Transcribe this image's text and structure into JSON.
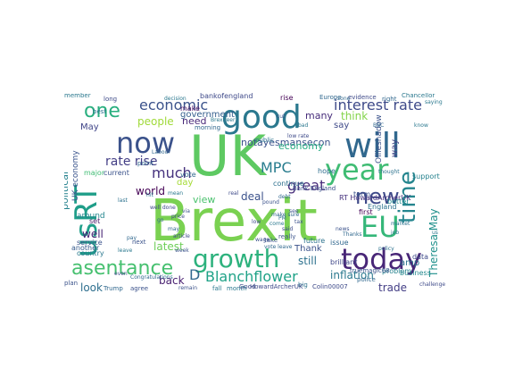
{
  "cloud": {
    "words": [
      {
        "text": "Brexit",
        "color": "#7ad151"
      },
      {
        "text": "UK",
        "color": "#5ec962"
      },
      {
        "text": "good",
        "color": "#2a788e"
      },
      {
        "text": "will",
        "color": "#31688e"
      },
      {
        "text": "now",
        "color": "#3b528b"
      },
      {
        "text": "year",
        "color": "#3fbc73"
      },
      {
        "text": "EU",
        "color": "#35b779"
      },
      {
        "text": "today",
        "color": "#482677"
      },
      {
        "text": "growth",
        "color": "#2db27d"
      },
      {
        "text": "asentance",
        "color": "#46c06f"
      },
      {
        "text": "usRT",
        "color": "#1f9e89"
      },
      {
        "text": "time",
        "color": "#25858e"
      },
      {
        "text": "new",
        "color": "#3e4a89"
      },
      {
        "text": "one",
        "color": "#29af7f"
      },
      {
        "text": "economic",
        "color": "#3b528b"
      },
      {
        "text": "interest rate",
        "color": "#3e4a89"
      },
      {
        "text": "MPC",
        "color": "#287c8e"
      },
      {
        "text": "Blanchflower",
        "color": "#1fa287"
      },
      {
        "text": "D",
        "color": "#31688e"
      },
      {
        "text": "inflation",
        "color": "#2a788e"
      },
      {
        "text": "notayesmansecon",
        "color": "#3b528b"
      },
      {
        "text": "Theresa May",
        "color": "#21918c"
      },
      {
        "text": "rate rise",
        "color": "#433e85"
      },
      {
        "text": "much",
        "color": "#46337e"
      },
      {
        "text": "economy",
        "color": "#25ab82"
      },
      {
        "text": "people",
        "color": "#a0da39"
      },
      {
        "text": "great",
        "color": "#472c7a"
      },
      {
        "text": "world",
        "color": "#440154"
      },
      {
        "text": "deal",
        "color": "#3b528b"
      },
      {
        "text": "still",
        "color": "#2c718e"
      },
      {
        "text": "latest",
        "color": "#6ece58"
      },
      {
        "text": "back",
        "color": "#481f70"
      },
      {
        "text": "view",
        "color": "#4ac16d"
      },
      {
        "text": "government",
        "color": "#355f8d"
      },
      {
        "text": "need",
        "color": "#482878"
      },
      {
        "text": "many",
        "color": "#472d7b"
      },
      {
        "text": "think",
        "color": "#84d44b"
      },
      {
        "text": "say",
        "color": "#3e4989"
      },
      {
        "text": "look",
        "color": "#2e6f8e"
      },
      {
        "text": "day",
        "color": "#a5db36"
      },
      {
        "text": "Thank",
        "color": "#3b528b"
      },
      {
        "text": "well",
        "color": "#482475"
      },
      {
        "text": "trade",
        "color": "#433e85"
      },
      {
        "text": "political",
        "color": "#26828e"
      },
      {
        "text": "amp",
        "color": "#2c728e"
      },
      {
        "text": "way",
        "color": "#414487"
      },
      {
        "text": "bankofengland",
        "color": "#3e4989"
      },
      {
        "text": "May",
        "color": "#404588"
      },
      {
        "text": "continue",
        "color": "#2d708e"
      },
      {
        "text": "business",
        "color": "#23898e"
      },
      {
        "text": "support",
        "color": "#26828e"
      },
      {
        "text": "UK economy",
        "color": "#3a548c"
      },
      {
        "text": "RT HowardArcherUK",
        "color": "#46327e"
      },
      {
        "text": "England",
        "color": "#2c728e"
      },
      {
        "text": "around",
        "color": "#24868e"
      },
      {
        "text": "service",
        "color": "#3b528b"
      },
      {
        "text": "country",
        "color": "#2a788e"
      },
      {
        "text": "another",
        "color": "#375b8d"
      },
      {
        "text": "issue",
        "color": "#31688e"
      },
      {
        "text": "brilliant",
        "color": "#3f4788"
      },
      {
        "text": "problem",
        "color": "#26828e"
      },
      {
        "text": "data",
        "color": "#3e4a89"
      },
      {
        "text": "hope",
        "color": "#2e6e8e"
      },
      {
        "text": "term",
        "color": "#3b528b"
      },
      {
        "text": "better",
        "color": "#23898e"
      },
      {
        "text": "first",
        "color": "#440154"
      },
      {
        "text": "future",
        "color": "#2c728e"
      },
      {
        "text": "rise",
        "color": "#440154"
      },
      {
        "text": "set",
        "color": "#481a6c"
      },
      {
        "text": "major",
        "color": "#3fbc73"
      },
      {
        "text": "current",
        "color": "#3b528b"
      },
      {
        "text": "vote",
        "color": "#31688e"
      },
      {
        "text": "make",
        "color": "#470e61"
      },
      {
        "text": "long",
        "color": "#3e4a89"
      },
      {
        "text": "best",
        "color": "#2c728e"
      },
      {
        "text": "big",
        "color": "#2c728e"
      },
      {
        "text": "agree",
        "color": "#3b528b"
      },
      {
        "text": "Trump",
        "color": "#31688e"
      },
      {
        "text": "HowardArcherUK",
        "color": "#3e4a89"
      },
      {
        "text": "Colin00007",
        "color": "#3e4a89"
      },
      {
        "text": "truemagic68",
        "color": "#3b528b"
      },
      {
        "text": "police",
        "color": "#31688e"
      },
      {
        "text": "month",
        "color": "#2a788e"
      },
      {
        "text": "fall",
        "color": "#2a788e"
      },
      {
        "text": "next",
        "color": "#3b528b"
      },
      {
        "text": "point",
        "color": "#31688e"
      },
      {
        "text": "Chancellor",
        "color": "#2a788e"
      },
      {
        "text": "Europe",
        "color": "#31688e"
      },
      {
        "text": "evidence",
        "color": "#3e4a89"
      },
      {
        "text": "Bank England",
        "color": "#3b528b"
      },
      {
        "text": "public",
        "color": "#2c728e"
      },
      {
        "text": "morning",
        "color": "#31688e"
      },
      {
        "text": "member",
        "color": "#2a788e"
      },
      {
        "text": "take",
        "color": "#3b528b"
      },
      {
        "text": "plan",
        "color": "#3b528b"
      },
      {
        "text": "right",
        "color": "#31688e"
      },
      {
        "text": "Good",
        "color": "#3e4a89"
      },
      {
        "text": "saying",
        "color": "#2a788e"
      },
      {
        "text": "really",
        "color": "#3b528b"
      },
      {
        "text": "zone",
        "color": "#31688e"
      },
      {
        "text": "decision",
        "color": "#2a788e"
      },
      {
        "text": "article",
        "color": "#3e4a89"
      },
      {
        "text": "thought",
        "color": "#2c728e"
      },
      {
        "text": "remain",
        "color": "#3b528b"
      },
      {
        "text": "Congratulations",
        "color": "#31688e"
      },
      {
        "text": "Brexiteer",
        "color": "#2a788e"
      },
      {
        "text": "challenge",
        "color": "#3e4a89"
      },
      {
        "text": "Ollieshadow",
        "color": "#3b528b"
      },
      {
        "text": "pay",
        "color": "#31688e"
      },
      {
        "text": "mean",
        "color": "#2a788e"
      },
      {
        "text": "cut",
        "color": "#3b528b"
      },
      {
        "text": "low",
        "color": "#3e4a89"
      },
      {
        "text": "market",
        "color": "#2c728e"
      },
      {
        "text": "Labour",
        "color": "#31688e"
      },
      {
        "text": "wage",
        "color": "#3b528b"
      },
      {
        "text": "job",
        "color": "#2a788e"
      },
      {
        "text": "price",
        "color": "#3e4a89"
      },
      {
        "text": "debt",
        "color": "#31688e"
      },
      {
        "text": "policy",
        "color": "#2c728e"
      },
      {
        "text": "pound",
        "color": "#3b528b"
      },
      {
        "text": "leave",
        "color": "#2a788e"
      },
      {
        "text": "said",
        "color": "#3e4a89"
      },
      {
        "text": "Thanks",
        "color": "#31688e"
      },
      {
        "text": "week",
        "color": "#3b528b"
      },
      {
        "text": "know",
        "color": "#2a788e"
      },
      {
        "text": "vote leave",
        "color": "#31688e"
      },
      {
        "text": "even",
        "color": "#3e4a89"
      },
      {
        "text": "see",
        "color": "#3b528b"
      },
      {
        "text": "last",
        "color": "#2c728e"
      },
      {
        "text": "BBC",
        "color": "#31688e"
      },
      {
        "text": "bad",
        "color": "#2a788e"
      },
      {
        "text": "news",
        "color": "#3b528b"
      },
      {
        "text": "real",
        "color": "#3e4a89"
      },
      {
        "text": "may",
        "color": "#31688e"
      },
      {
        "text": "hit",
        "color": "#2a788e"
      },
      {
        "text": "tax",
        "color": "#3b528b"
      },
      {
        "text": "PM",
        "color": "#2c728e"
      },
      {
        "text": "go",
        "color": "#31688e"
      },
      {
        "text": "us",
        "color": "#2a788e"
      },
      {
        "text": "low rate",
        "color": "#3e4a89"
      },
      {
        "text": "via",
        "color": "#3b528b"
      },
      {
        "text": "make sure",
        "color": "#31688e"
      },
      {
        "text": "come",
        "color": "#2a788e"
      },
      {
        "text": "well done",
        "color": "#3e4a89"
      }
    ]
  }
}
